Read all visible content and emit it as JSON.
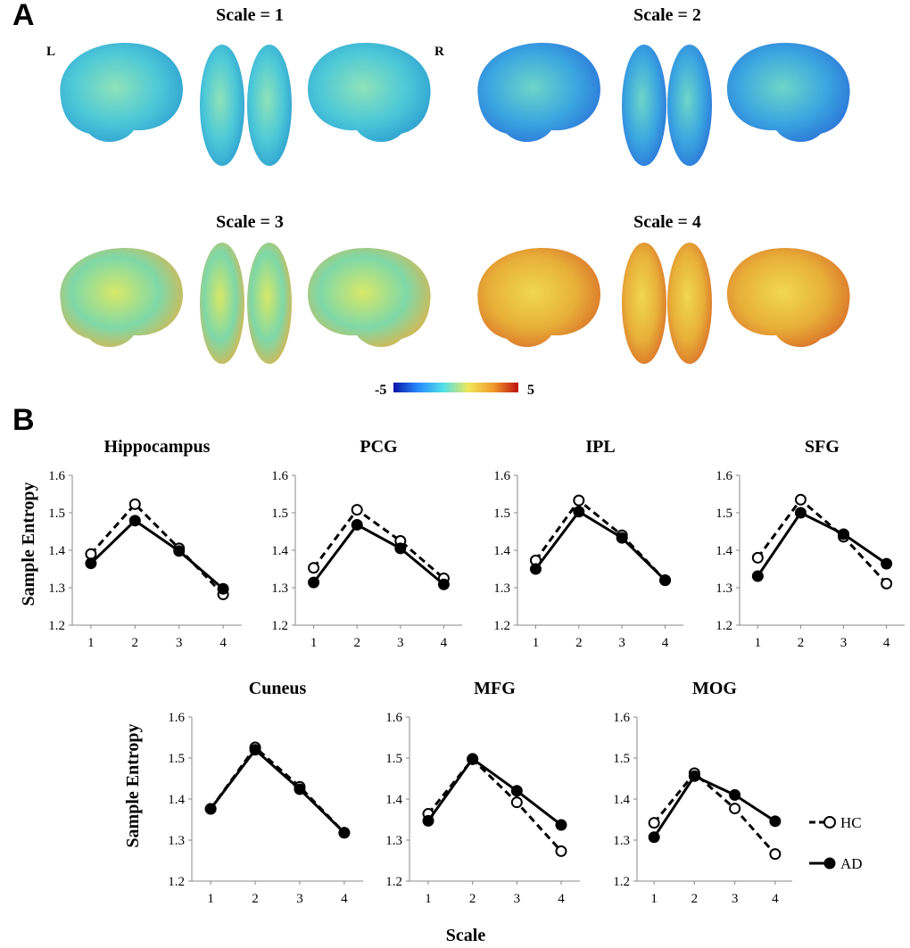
{
  "panel_a": {
    "letter": "A",
    "hemisphere_left": "L",
    "hemisphere_right": "R",
    "scales": [
      {
        "title": "Scale = 1",
        "tone": "cool"
      },
      {
        "title": "Scale = 2",
        "tone": "cold"
      },
      {
        "title": "Scale = 3",
        "tone": "mixed"
      },
      {
        "title": "Scale = 4",
        "tone": "warm"
      }
    ],
    "colorbar": {
      "min_label": "-5",
      "max_label": "5",
      "colors": [
        "#0a14a8",
        "#2a8cff",
        "#4fe0e8",
        "#f0e85a",
        "#f09a2a",
        "#c01010"
      ]
    }
  },
  "panel_b": {
    "letter": "B",
    "ylabel": "Sample Entropy",
    "xlabel": "Scale",
    "legend": [
      {
        "name": "HC",
        "style": "dashed-open"
      },
      {
        "name": "AD",
        "style": "solid-filled"
      }
    ]
  },
  "chart_data": [
    {
      "type": "line",
      "title": "Hippocampus",
      "x": [
        1,
        2,
        3,
        4
      ],
      "ylim": [
        1.2,
        1.6
      ],
      "yticks": [
        "1.2",
        "1.3",
        "1.4",
        "1.5",
        "1.6"
      ],
      "xticks": [
        "1",
        "2",
        "3",
        "4"
      ],
      "series": [
        {
          "name": "HC",
          "values": [
            1.39,
            1.523,
            1.405,
            1.282
          ]
        },
        {
          "name": "AD",
          "values": [
            1.365,
            1.479,
            1.398,
            1.297
          ]
        }
      ]
    },
    {
      "type": "line",
      "title": "PCG",
      "x": [
        1,
        2,
        3,
        4
      ],
      "ylim": [
        1.2,
        1.6
      ],
      "yticks": [
        "1.2",
        "1.3",
        "1.4",
        "1.5",
        "1.6"
      ],
      "xticks": [
        "1",
        "2",
        "3",
        "4"
      ],
      "series": [
        {
          "name": "HC",
          "values": [
            1.353,
            1.508,
            1.425,
            1.325
          ]
        },
        {
          "name": "AD",
          "values": [
            1.314,
            1.468,
            1.405,
            1.309
          ]
        }
      ]
    },
    {
      "type": "line",
      "title": "IPL",
      "x": [
        1,
        2,
        3,
        4
      ],
      "ylim": [
        1.2,
        1.6
      ],
      "yticks": [
        "1.2",
        "1.3",
        "1.4",
        "1.5",
        "1.6"
      ],
      "xticks": [
        "1",
        "2",
        "3",
        "4"
      ],
      "series": [
        {
          "name": "HC",
          "values": [
            1.373,
            1.533,
            1.44,
            1.32
          ]
        },
        {
          "name": "AD",
          "values": [
            1.35,
            1.503,
            1.433,
            1.32
          ]
        }
      ]
    },
    {
      "type": "line",
      "title": "SFG",
      "x": [
        1,
        2,
        3,
        4
      ],
      "ylim": [
        1.2,
        1.6
      ],
      "yticks": [
        "1.2",
        "1.3",
        "1.4",
        "1.5",
        "1.6"
      ],
      "xticks": [
        "1",
        "2",
        "3",
        "4"
      ],
      "series": [
        {
          "name": "HC",
          "values": [
            1.38,
            1.535,
            1.436,
            1.311
          ]
        },
        {
          "name": "AD",
          "values": [
            1.331,
            1.5,
            1.443,
            1.364
          ]
        }
      ]
    },
    {
      "type": "line",
      "title": "Cuneus",
      "x": [
        1,
        2,
        3,
        4
      ],
      "ylim": [
        1.2,
        1.6
      ],
      "yticks": [
        "1.2",
        "1.3",
        "1.4",
        "1.5",
        "1.6"
      ],
      "xticks": [
        "1",
        "2",
        "3",
        "4"
      ],
      "series": [
        {
          "name": "HC",
          "values": [
            1.376,
            1.526,
            1.43,
            1.318
          ]
        },
        {
          "name": "AD",
          "values": [
            1.376,
            1.52,
            1.424,
            1.318
          ]
        }
      ]
    },
    {
      "type": "line",
      "title": "MFG",
      "x": [
        1,
        2,
        3,
        4
      ],
      "ylim": [
        1.2,
        1.6
      ],
      "yticks": [
        "1.2",
        "1.3",
        "1.4",
        "1.5",
        "1.6"
      ],
      "xticks": [
        "1",
        "2",
        "3",
        "4"
      ],
      "series": [
        {
          "name": "HC",
          "values": [
            1.364,
            1.497,
            1.392,
            1.273
          ]
        },
        {
          "name": "AD",
          "values": [
            1.347,
            1.498,
            1.42,
            1.337
          ]
        }
      ]
    },
    {
      "type": "line",
      "title": "MOG",
      "x": [
        1,
        2,
        3,
        4
      ],
      "ylim": [
        1.2,
        1.6
      ],
      "yticks": [
        "1.2",
        "1.3",
        "1.4",
        "1.5",
        "1.6"
      ],
      "xticks": [
        "1",
        "2",
        "3",
        "4"
      ],
      "series": [
        {
          "name": "HC",
          "values": [
            1.342,
            1.463,
            1.377,
            1.266
          ]
        },
        {
          "name": "AD",
          "values": [
            1.307,
            1.456,
            1.41,
            1.346
          ]
        }
      ]
    }
  ]
}
